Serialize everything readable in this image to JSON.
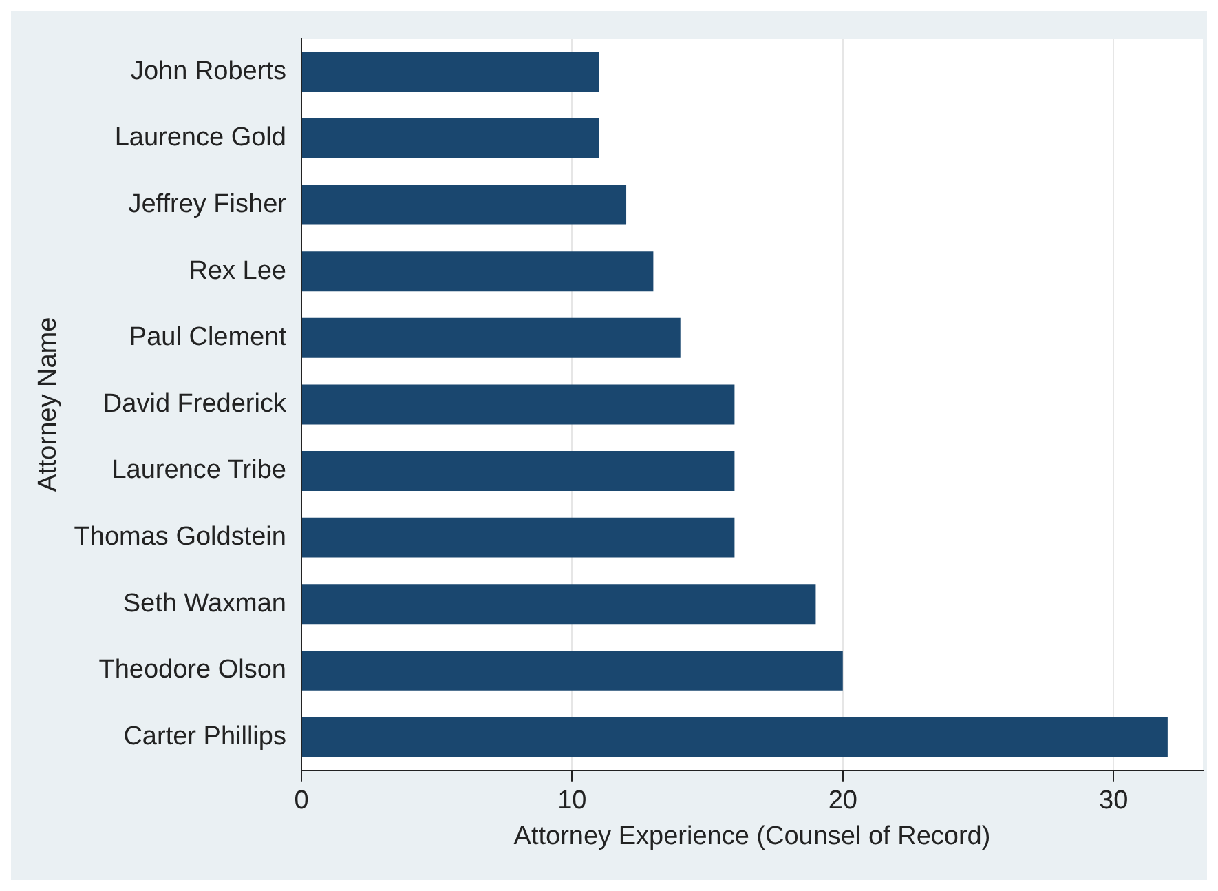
{
  "chart_data": {
    "type": "bar",
    "orientation": "horizontal",
    "xlabel": "Attorney Experience (Counsel of Record)",
    "ylabel": "Attorney Name",
    "categories": [
      "John Roberts",
      "Laurence Gold",
      "Jeffrey Fisher",
      "Rex Lee",
      "Paul Clement",
      "David Frederick",
      "Laurence Tribe",
      "Thomas Goldstein",
      "Seth Waxman",
      "Theodore Olson",
      "Carter Phillips"
    ],
    "values": [
      11,
      11,
      12,
      13,
      14,
      16,
      16,
      16,
      19,
      20,
      32
    ],
    "color": "#1a476f",
    "xlim": [
      0,
      33.3
    ],
    "xticks": [
      0,
      10,
      20,
      30
    ],
    "grid": "x",
    "legend": false
  }
}
